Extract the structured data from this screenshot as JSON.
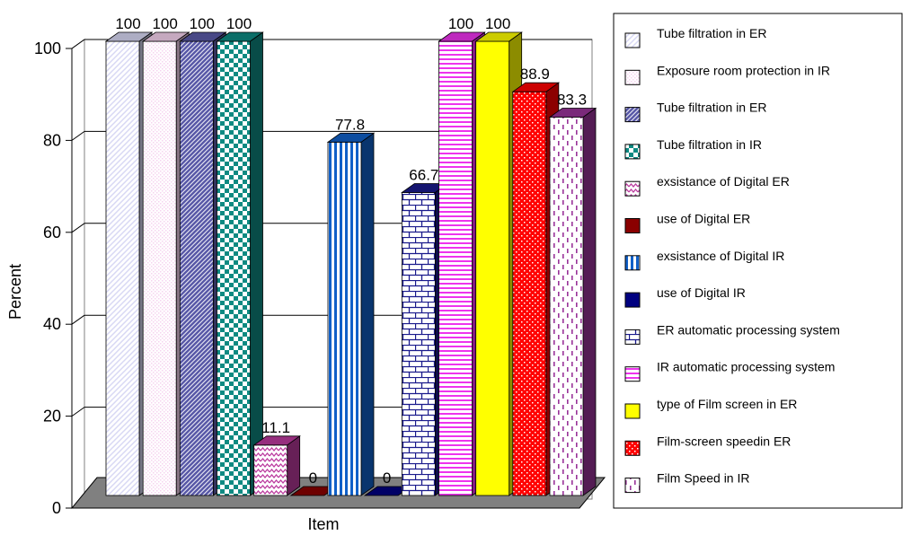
{
  "chart_data": {
    "type": "bar",
    "title": "",
    "ylabel": "Percent",
    "xlabel": "Item",
    "ylim": [
      0,
      100
    ],
    "yticks": [
      0,
      20,
      40,
      60,
      80,
      100
    ],
    "grid": true,
    "legend_position": "right",
    "series": [
      {
        "name": "Tube filtration in ER",
        "value": 100,
        "label": "100",
        "color": "#d8d8f4",
        "pattern": "diag-light"
      },
      {
        "name": "Exposure room protection in IR",
        "value": 100,
        "label": "100",
        "color": "#f6d3ef",
        "pattern": "dots-pink"
      },
      {
        "name": "Tube filtration in ER",
        "value": 100,
        "label": "100",
        "color": "#5a5aa8",
        "pattern": "diag-dense"
      },
      {
        "name": "Tube filtration in IR",
        "value": 100,
        "label": "100",
        "color": "#0e8a82",
        "pattern": "checker-teal"
      },
      {
        "name": "exsistance of Digital ER",
        "value": 11.1,
        "label": "11.1",
        "color": "#bb3a9e",
        "pattern": "wave-pink"
      },
      {
        "name": "use of Digital ER",
        "value": 0,
        "label": "0",
        "color": "#8a0000",
        "pattern": "solid-darkred"
      },
      {
        "name": "exsistance of Digital IR",
        "value": 77.8,
        "label": "77.8",
        "color": "#1060c8",
        "pattern": "vstripe-blue"
      },
      {
        "name": "use of Digital IR",
        "value": 0,
        "label": "0",
        "color": "#000080",
        "pattern": "solid-navy"
      },
      {
        "name": "ER automatic processing system",
        "value": 66.7,
        "label": "66.7",
        "color": "#1a1a8c",
        "pattern": "brick-navy"
      },
      {
        "name": "IR automatic processing system",
        "value": 100,
        "label": "100",
        "color": "#ee33ee",
        "pattern": "hstripe-magenta"
      },
      {
        "name": "type of Film screen in ER",
        "value": 100,
        "label": "100",
        "color": "#ffff00",
        "pattern": "solid-yellow"
      },
      {
        "name": "Film-screen  speedin ER",
        "value": 88.9,
        "label": "88.9",
        "color": "#ff0000",
        "pattern": "dots-red"
      },
      {
        "name": "Film Speed in IR",
        "value": 83.3,
        "label": "83.3",
        "color": "#993399",
        "pattern": "dash-purple"
      }
    ]
  }
}
